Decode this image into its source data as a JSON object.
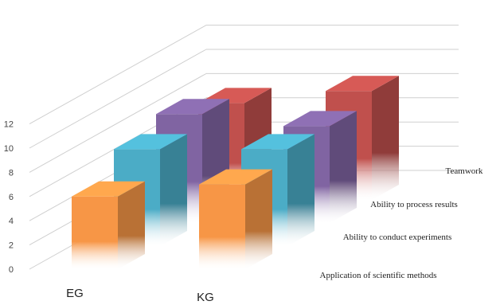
{
  "chart_data": {
    "type": "bar",
    "subtype": "3d-clustered-bar",
    "title": "",
    "xlabel": "",
    "ylabel": "",
    "ylim": [
      0,
      12
    ],
    "yticks": [
      "0",
      "2",
      "4",
      "6",
      "8",
      "10",
      "12"
    ],
    "categories": [
      "EG",
      "KG"
    ],
    "series": [
      {
        "name": "Application of scientific methods",
        "color": "#F79646",
        "values": [
          6,
          7
        ]
      },
      {
        "name": "Ability to conduct experiments",
        "color": "#4BACC6",
        "values": [
          8,
          8
        ]
      },
      {
        "name": "Ability to process results",
        "color": "#8064A2",
        "values": [
          9,
          8
        ]
      },
      {
        "name": "Teamwork",
        "color": "#C0504D",
        "values": [
          8,
          9
        ]
      }
    ],
    "grid": true,
    "legend": "depth-axis labels"
  }
}
